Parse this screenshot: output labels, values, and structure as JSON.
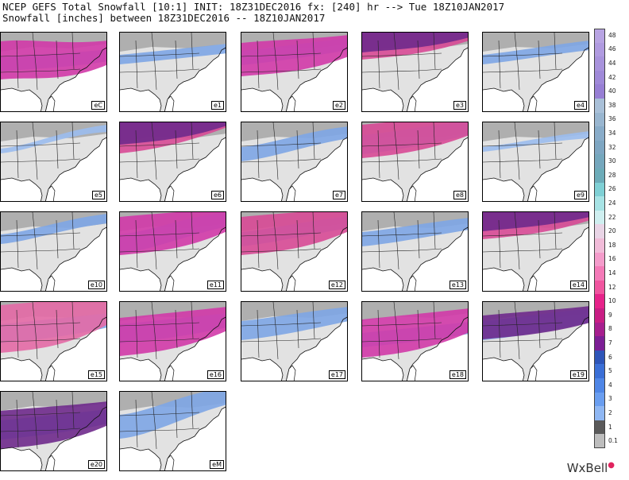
{
  "header": {
    "line1": "NCEP GEFS Total Snowfall [10:1] INIT: 18Z31DEC2016 fx: [240] hr --> Tue 18Z10JAN2017",
    "line2": "Snowfall [inches] between 18Z31DEC2016 -- 18Z10JAN2017"
  },
  "panels": [
    {
      "label": "eC",
      "snow": [
        [
          0,
          -4,
          3,
          "#7ea6e6"
        ],
        [
          -5,
          0,
          8,
          "#d23aa8"
        ]
      ]
    },
    {
      "label": "e1",
      "snow": [
        [
          -6,
          -14,
          2,
          "#7ea6e6"
        ]
      ]
    },
    {
      "label": "e2",
      "snow": [
        [
          -8,
          -18,
          3,
          "#7ea6e6"
        ],
        [
          -6,
          -10,
          7,
          "#d23aa8"
        ]
      ]
    },
    {
      "label": "e3",
      "snow": [
        [
          -24,
          -30,
          6,
          "#d84a96"
        ],
        [
          -30,
          -34,
          5,
          "#6f2a8c"
        ]
      ]
    },
    {
      "label": "e4",
      "snow": [
        [
          -6,
          -18,
          2,
          "#7ea6e6"
        ]
      ]
    },
    {
      "label": "e5",
      "snow": [
        [
          -4,
          -28,
          1,
          "#9bbdee"
        ]
      ]
    },
    {
      "label": "e6",
      "snow": [
        [
          -22,
          -34,
          7,
          "#d84a96"
        ],
        [
          -30,
          -36,
          6,
          "#6f2a8c"
        ]
      ]
    },
    {
      "label": "e7",
      "snow": [
        [
          0,
          -20,
          3,
          "#7ea6e6"
        ]
      ]
    },
    {
      "label": "e8",
      "snow": [
        [
          -12,
          -24,
          4,
          "#7ea6e6"
        ],
        [
          -16,
          -24,
          7,
          "#d84a96"
        ]
      ]
    },
    {
      "label": "e9",
      "snow": [
        [
          -6,
          -20,
          1,
          "#9bbdee"
        ]
      ]
    },
    {
      "label": "e10",
      "snow": [
        [
          -6,
          -26,
          2,
          "#7ea6e6"
        ]
      ]
    },
    {
      "label": "e11",
      "snow": [
        [
          0,
          -22,
          4,
          "#7ea6e6"
        ],
        [
          -10,
          -16,
          8,
          "#d23aa8"
        ]
      ]
    },
    {
      "label": "e12",
      "snow": [
        [
          -6,
          -20,
          3,
          "#7ea6e6"
        ],
        [
          -10,
          -16,
          8,
          "#d84a96"
        ]
      ]
    },
    {
      "label": "e13",
      "snow": [
        [
          -6,
          -18,
          3,
          "#7ea6e6"
        ]
      ]
    },
    {
      "label": "e14",
      "snow": [
        [
          -24,
          -30,
          6,
          "#d84a96"
        ],
        [
          -28,
          -34,
          4,
          "#6f2a8c"
        ]
      ]
    },
    {
      "label": "e15",
      "snow": [
        [
          0,
          -8,
          4,
          "#7ea6e6"
        ],
        [
          -6,
          -12,
          10,
          "#e46aa6"
        ]
      ]
    },
    {
      "label": "e16",
      "snow": [
        [
          0,
          -8,
          4,
          "#7ea6e6"
        ],
        [
          4,
          -4,
          8,
          "#d23aa8"
        ]
      ]
    },
    {
      "label": "e17",
      "snow": [
        [
          -4,
          -16,
          4,
          "#7ea6e6"
        ]
      ]
    },
    {
      "label": "e18",
      "snow": [
        [
          8,
          0,
          3,
          "#7ea6e6"
        ],
        [
          6,
          -2,
          8,
          "#d23aa8"
        ]
      ]
    },
    {
      "label": "e19",
      "snow": [
        [
          -4,
          -14,
          4,
          "#7ea6e6"
        ],
        [
          -8,
          -14,
          5,
          "#6f2a8c"
        ]
      ]
    },
    {
      "label": "e20",
      "snow": [
        [
          8,
          0,
          4,
          "#7ea6e6"
        ],
        [
          8,
          2,
          8,
          "#6f2a8c"
        ]
      ]
    },
    {
      "label": "eM",
      "snow": [
        [
          4,
          -24,
          5,
          "#7ea6e6"
        ]
      ]
    }
  ],
  "legend": [
    {
      "v": "48",
      "c": "#b8a4e3"
    },
    {
      "v": "46",
      "c": "#b09be0"
    },
    {
      "v": "44",
      "c": "#a893dc"
    },
    {
      "v": "42",
      "c": "#9f89d8"
    },
    {
      "v": "40",
      "c": "#977fd4"
    },
    {
      "v": "38",
      "c": "#a9c0d8"
    },
    {
      "v": "36",
      "c": "#99b6d0"
    },
    {
      "v": "34",
      "c": "#89acc9"
    },
    {
      "v": "32",
      "c": "#7ea6c2"
    },
    {
      "v": "30",
      "c": "#75a7bd"
    },
    {
      "v": "28",
      "c": "#6dacb9"
    },
    {
      "v": "26",
      "c": "#7fd0d5"
    },
    {
      "v": "24",
      "c": "#a7e3e5"
    },
    {
      "v": "22",
      "c": "#cfeff0"
    },
    {
      "v": "20",
      "c": "#e9d5e6"
    },
    {
      "v": "18",
      "c": "#f1bcd9"
    },
    {
      "v": "16",
      "c": "#f49ccb"
    },
    {
      "v": "14",
      "c": "#f47ab8"
    },
    {
      "v": "12",
      "c": "#f0559f"
    },
    {
      "v": "10",
      "c": "#e6238a"
    },
    {
      "v": "9",
      "c": "#c81e84"
    },
    {
      "v": "8",
      "c": "#a61f8e"
    },
    {
      "v": "7",
      "c": "#7c1f95"
    },
    {
      "v": "6",
      "c": "#2e55b8"
    },
    {
      "v": "5",
      "c": "#3b6fd6"
    },
    {
      "v": "4",
      "c": "#4f86e6"
    },
    {
      "v": "3",
      "c": "#6a9ef0"
    },
    {
      "v": "2",
      "c": "#8fb7f3"
    },
    {
      "v": "1",
      "c": "#5a5a5a"
    },
    {
      "v": "0.1",
      "c": "#bdbdbd"
    }
  ],
  "brand": {
    "text": "WxBell",
    "mark": "●"
  }
}
